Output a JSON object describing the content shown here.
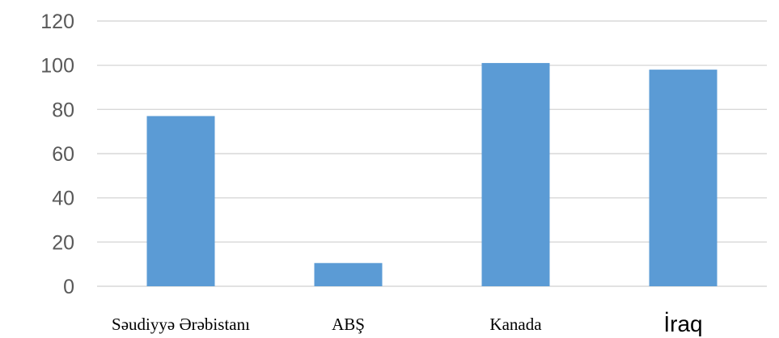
{
  "chart_data": {
    "type": "bar",
    "categories": [
      "Səudiyyə Ərəbistanı",
      "ABŞ",
      "Kanada",
      "İraq"
    ],
    "values": [
      77,
      10.5,
      101,
      98
    ],
    "title": "",
    "xlabel": "",
    "ylabel": "",
    "ylim": [
      0,
      120
    ],
    "yticks": [
      0,
      20,
      40,
      60,
      80,
      100,
      120
    ],
    "grid": true,
    "legend": "none",
    "bar_color": "#5b9bd5"
  }
}
